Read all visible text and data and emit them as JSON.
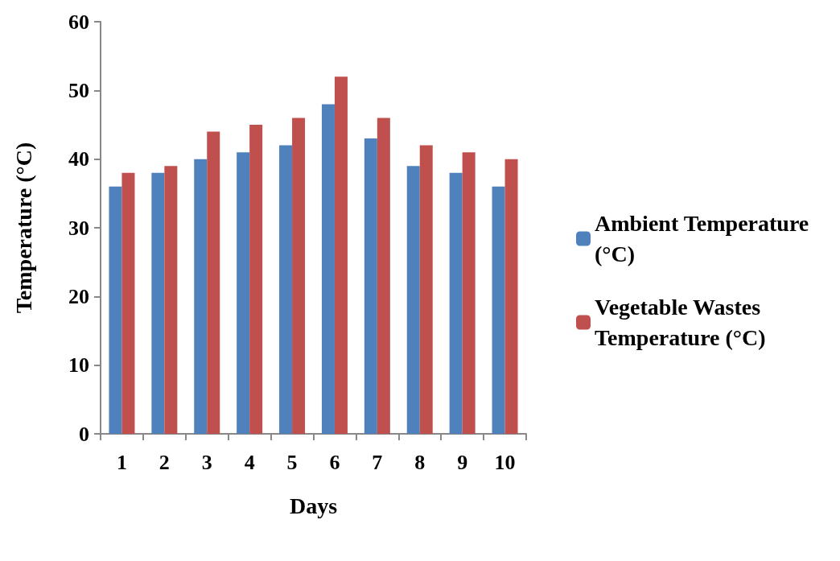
{
  "chart_data": {
    "type": "bar",
    "xlabel": "Days",
    "ylabel": "Temperature (°C)",
    "categories": [
      "1",
      "2",
      "3",
      "4",
      "5",
      "6",
      "7",
      "8",
      "9",
      "10"
    ],
    "series": [
      {
        "name": "Ambient Temperature (°C)",
        "color": "#4f81bd",
        "values": [
          36,
          38,
          40,
          41,
          42,
          48,
          43,
          39,
          38,
          36
        ]
      },
      {
        "name": "Vegetable Wastes Temperature (°C)",
        "color": "#c0504d",
        "values": [
          38,
          39,
          44,
          45,
          46,
          52,
          46,
          42,
          41,
          40
        ]
      }
    ],
    "ylim": [
      0,
      60
    ],
    "yticks": [
      0,
      10,
      20,
      30,
      40,
      50,
      60
    ],
    "grid": false,
    "legend": "right"
  }
}
